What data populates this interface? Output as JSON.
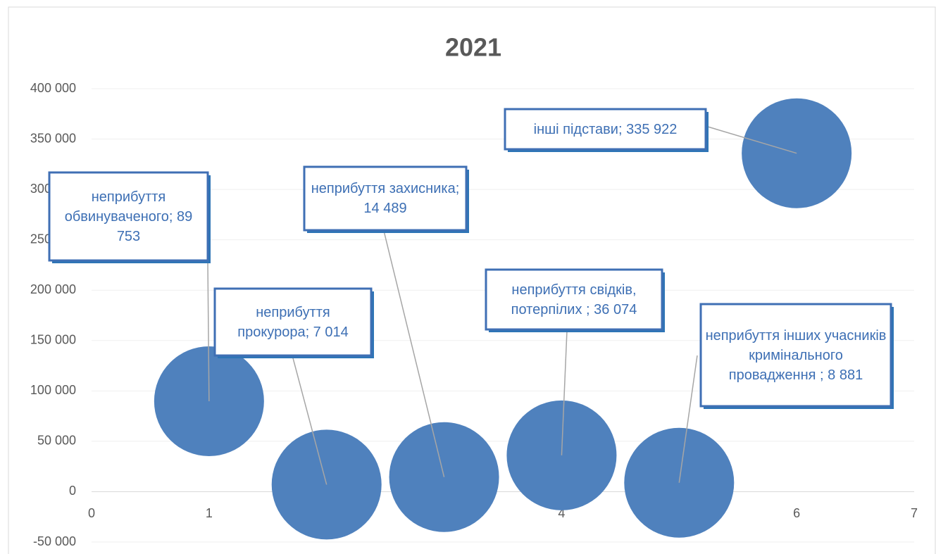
{
  "chart_data": {
    "type": "bubble",
    "title": "2021",
    "x": [
      1,
      2,
      3,
      4,
      5,
      6
    ],
    "values": [
      89753,
      7014,
      14489,
      36074,
      8881,
      335922
    ],
    "value_labels": [
      "неприбуття обвинуваченого; 89 753",
      "неприбуття прокурора; 7 014",
      "неприбуття захисника; 14 489",
      "неприбуття свідків, потерпілих ; 36 074",
      "неприбуття інших учасників кримінального провадження ; 8 881",
      "інші підстави; 335 922"
    ],
    "color": "#4f81bd",
    "xlim": [
      0,
      7
    ],
    "xticks": [
      0,
      1,
      2,
      3,
      4,
      5,
      6,
      7
    ],
    "ylim": [
      -50000,
      400000
    ],
    "yticks": [
      {
        "value": -50000,
        "label": "-50 000"
      },
      0,
      {
        "value": 50000,
        "label": "50 000"
      },
      {
        "value": 100000,
        "label": "100 000"
      },
      {
        "value": 150000,
        "label": "150 000"
      },
      {
        "value": 200000,
        "label": "200 000"
      },
      {
        "value": 250000,
        "label": "250 000"
      },
      {
        "value": 300000,
        "label": "300 000"
      },
      {
        "value": 350000,
        "label": "350 000"
      },
      {
        "value": 400000,
        "label": "400 000"
      }
    ],
    "grid": true
  }
}
